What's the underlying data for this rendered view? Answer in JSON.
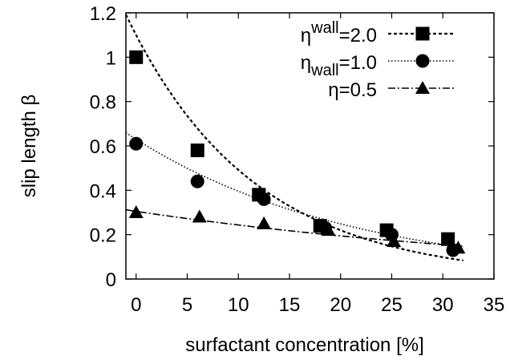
{
  "chart_data": {
    "type": "scatter",
    "xlabel": "surfactant concentration [%]",
    "ylabel": "slip length β",
    "xlim": [
      -1,
      35
    ],
    "ylim": [
      0,
      1.2
    ],
    "xticks": [
      "0",
      "5",
      "10",
      "15",
      "20",
      "25",
      "30",
      "35"
    ],
    "yticks": [
      "0",
      "0.2",
      "0.4",
      "0.6",
      "0.8",
      "1",
      "1.2"
    ],
    "grid": false,
    "legend_position": "top-right",
    "series": [
      {
        "name": "η^wall=2.0",
        "legend": {
          "base": "η",
          "sup": "wall",
          "sub": "",
          "value": "=2.0"
        },
        "marker": "square",
        "line": "dashed",
        "points": [
          [
            0,
            1.0
          ],
          [
            6,
            0.58
          ],
          [
            12,
            0.38
          ],
          [
            18,
            0.24
          ],
          [
            24.5,
            0.22
          ],
          [
            30.5,
            0.18
          ]
        ],
        "fit": {
          "form": "exponential",
          "a": 1.1,
          "b": -0.0805
        }
      },
      {
        "name": "η^wall=1.0",
        "legend": {
          "base": "η",
          "sup": "",
          "sub": "wall",
          "value": "=1.0"
        },
        "marker": "circle",
        "line": "dotted",
        "points": [
          [
            0,
            0.61
          ],
          [
            6,
            0.44
          ],
          [
            12.5,
            0.36
          ],
          [
            18.5,
            0.23
          ],
          [
            25,
            0.2
          ],
          [
            31,
            0.13
          ]
        ],
        "fit": {
          "form": "exponential",
          "a": 0.63,
          "b": -0.0465
        }
      },
      {
        "name": "η=0.5",
        "legend": {
          "base": "η",
          "sup": "",
          "sub": "",
          "value": "=0.5"
        },
        "marker": "triangle",
        "line": "dash-dot",
        "points": [
          [
            0,
            0.3
          ],
          [
            6.2,
            0.28
          ],
          [
            12.5,
            0.25
          ],
          [
            18.8,
            0.22
          ],
          [
            25.2,
            0.17
          ],
          [
            31.5,
            0.14
          ]
        ],
        "fit": {
          "form": "exponential",
          "a": 0.305,
          "b": -0.0225
        }
      }
    ]
  }
}
